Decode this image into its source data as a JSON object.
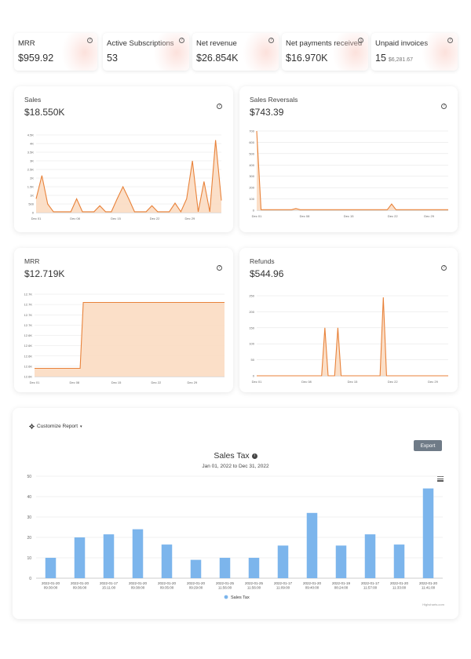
{
  "kpis": [
    {
      "label": "MRR",
      "value": "$959.92",
      "sub": ""
    },
    {
      "label": "Active Subscriptions",
      "value": "53",
      "sub": ""
    },
    {
      "label": "Net revenue",
      "value": "$26.854K",
      "sub": ""
    },
    {
      "label": "Net payments received",
      "value": "$16.970K",
      "sub": ""
    },
    {
      "label": "Unpaid invoices",
      "value": "15",
      "sub": "$6,281.67"
    }
  ],
  "help_glyph": "?",
  "cards": {
    "sales": {
      "title": "Sales",
      "value": "$18.550K"
    },
    "sales_reversals": {
      "title": "Sales Reversals",
      "value": "$743.39"
    },
    "mrr": {
      "title": "MRR",
      "value": "$12.719K"
    },
    "refunds": {
      "title": "Refunds",
      "value": "$544.96"
    }
  },
  "report": {
    "customize_label": "Customize Report",
    "export_label": "Export",
    "title": "Sales Tax",
    "info_glyph": "i",
    "subtitle": "Jan 01, 2022 to Dec 31, 2022",
    "credits": "Highcharts.com"
  },
  "colors": {
    "accent": "#e8823a",
    "fill": "#fbdcc2",
    "bar": "#7cb5ec"
  },
  "chart_data": [
    {
      "id": "sales",
      "type": "area",
      "x": [
        1,
        2,
        3,
        4,
        5,
        6,
        7,
        8,
        9,
        10,
        11,
        12,
        13,
        14,
        15,
        16,
        17,
        18,
        19,
        20,
        21,
        22,
        23,
        24,
        25,
        26,
        27,
        28,
        29,
        30,
        31,
        32
      ],
      "values": [
        800,
        2150,
        500,
        50,
        50,
        50,
        50,
        800,
        50,
        50,
        50,
        400,
        50,
        50,
        800,
        1500,
        800,
        50,
        50,
        50,
        400,
        50,
        50,
        50,
        550,
        50,
        800,
        3000,
        50,
        1800,
        50,
        4200
      ],
      "end_value": 700,
      "x_ticks": [
        "Dec 01",
        "Dec 08",
        "Dec 15",
        "Dec 22",
        "Dec 29"
      ],
      "y_ticks": [
        "0",
        "500",
        "1K",
        "1.5K",
        "2K",
        "2.5K",
        "3K",
        "3.5K",
        "4K",
        "4.5K"
      ],
      "ylim": [
        0,
        4500
      ]
    },
    {
      "id": "sales_reversals",
      "type": "area",
      "values": [
        700,
        5,
        5,
        5,
        5,
        5,
        5,
        5,
        5,
        15,
        5,
        5,
        5,
        5,
        5,
        5,
        5,
        5,
        5,
        5,
        5,
        5,
        5,
        5,
        5,
        5,
        5,
        5,
        5,
        5,
        5,
        55,
        5,
        5,
        5,
        5,
        5,
        5,
        5,
        5,
        5,
        5,
        5,
        5,
        5
      ],
      "x_ticks": [
        "Dec 01",
        "Dec 08",
        "Dec 15",
        "Dec 22",
        "Dec 29"
      ],
      "y_ticks": [
        "0",
        "100",
        "200",
        "300",
        "400",
        "500",
        "600",
        "700"
      ],
      "ylim": [
        0,
        700
      ]
    },
    {
      "id": "mrr",
      "type": "area",
      "step_index": 7.2,
      "low_value": 12.64,
      "high_value": 12.72,
      "x_ticks": [
        "Dec 01",
        "Dec 08",
        "Dec 15",
        "Dec 22",
        "Dec 29"
      ],
      "y_ticks": [
        "12.6K",
        "12.6K",
        "12.6K",
        "12.6K",
        "12.6K",
        "12.7K",
        "12.7K",
        "12.7K",
        "12.7K"
      ],
      "ylim": [
        12.63,
        12.73
      ]
    },
    {
      "id": "refunds",
      "type": "area",
      "values": [
        0,
        0,
        0,
        0,
        0,
        0,
        0,
        0,
        0,
        0,
        0,
        0,
        0,
        0,
        0,
        0,
        0,
        0,
        0,
        0,
        0,
        150,
        0,
        0,
        0,
        150,
        0,
        0,
        0,
        0,
        0,
        0,
        0,
        0,
        0,
        0,
        0,
        0,
        0,
        245,
        0,
        0,
        0,
        0,
        0,
        0,
        0,
        0,
        0,
        0,
        0,
        0,
        0,
        0,
        0,
        0,
        0,
        0,
        0,
        0
      ],
      "x_ticks": [
        "Dec 01",
        "Dec 08",
        "Dec 15",
        "Dec 22",
        "Dec 29"
      ],
      "y_ticks": [
        "0",
        "50",
        "100",
        "150",
        "200",
        "250"
      ],
      "ylim": [
        0,
        250
      ]
    },
    {
      "id": "sales_tax",
      "type": "bar",
      "categories": [
        [
          "2022-01-20",
          "09:30:00"
        ],
        [
          "2022-01-20",
          "09:36:00"
        ],
        [
          "2022-01-17",
          "15:11:00"
        ],
        [
          "2022-01-20",
          "09:38:00"
        ],
        [
          "2022-01-20",
          "09:35:00"
        ],
        [
          "2022-01-20",
          "09:29:00"
        ],
        [
          "2022-01-25",
          "11:56:00"
        ],
        [
          "2022-01-25",
          "11:56:00"
        ],
        [
          "2022-01-17",
          "11:09:00"
        ],
        [
          "2022-01-20",
          "09:40:00"
        ],
        [
          "2022-01-19",
          "08:24:00"
        ],
        [
          "2022-01-17",
          "11:57:00"
        ],
        [
          "2022-01-20",
          "11:33:00"
        ],
        [
          "2022-01-20",
          "11:41:00"
        ]
      ],
      "values": [
        10,
        20,
        21.5,
        24,
        16.5,
        9,
        10,
        10,
        16,
        32,
        16,
        21.5,
        16.5,
        44
      ],
      "series": [
        {
          "name": "Sales Tax"
        }
      ],
      "y_ticks": [
        "0",
        "10",
        "20",
        "30",
        "40",
        "50"
      ],
      "ylim": [
        0,
        50
      ],
      "grid": true,
      "legend": "bottom"
    }
  ]
}
